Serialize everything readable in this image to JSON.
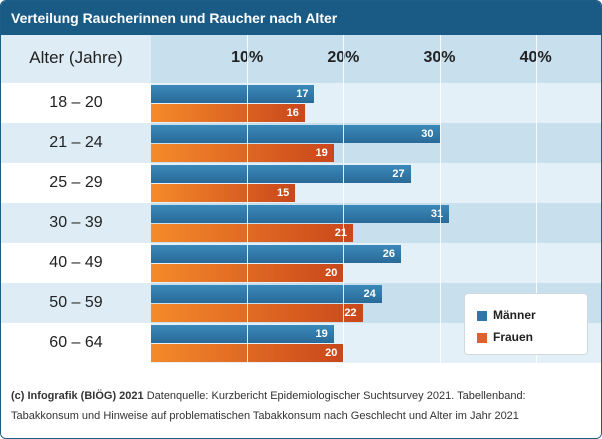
{
  "title": "Verteilung Raucherinnen und Raucher nach Alter",
  "header_label": "Alter (Jahre)",
  "footer": {
    "source_bold": "(c) Infografik (BIÖG) 2021",
    "source_text": " Datenquelle: Kurzbericht Epidemiologischer Suchtsurvey 2021. Tabellenband: Tabakkonsum und Hinweise auf problematischen Tabakkonsum nach Geschlecht und Alter im Jahr 2021"
  },
  "colors": {
    "maenner": "#2f77a8",
    "frauen": "#e0602a",
    "title_bg": "#1a5b86"
  },
  "chart_data": {
    "type": "bar",
    "orientation": "horizontal",
    "title": "Verteilung Raucherinnen und Raucher nach Alter",
    "ylabel": "Alter (Jahre)",
    "categories": [
      "18 – 20",
      "21 – 24",
      "25 – 29",
      "30 – 39",
      "40 – 49",
      "50 – 59",
      "60 – 64"
    ],
    "series": [
      {
        "name": "Männer",
        "values": [
          17,
          30,
          27,
          31,
          26,
          24,
          19
        ]
      },
      {
        "name": "Frauen",
        "values": [
          16,
          19,
          15,
          21,
          20,
          22,
          20
        ]
      }
    ],
    "xticks": [
      "10%",
      "20%",
      "30%",
      "40%"
    ],
    "xlim": [
      0,
      47
    ],
    "grid": true,
    "legend_position": "bottom-right"
  }
}
